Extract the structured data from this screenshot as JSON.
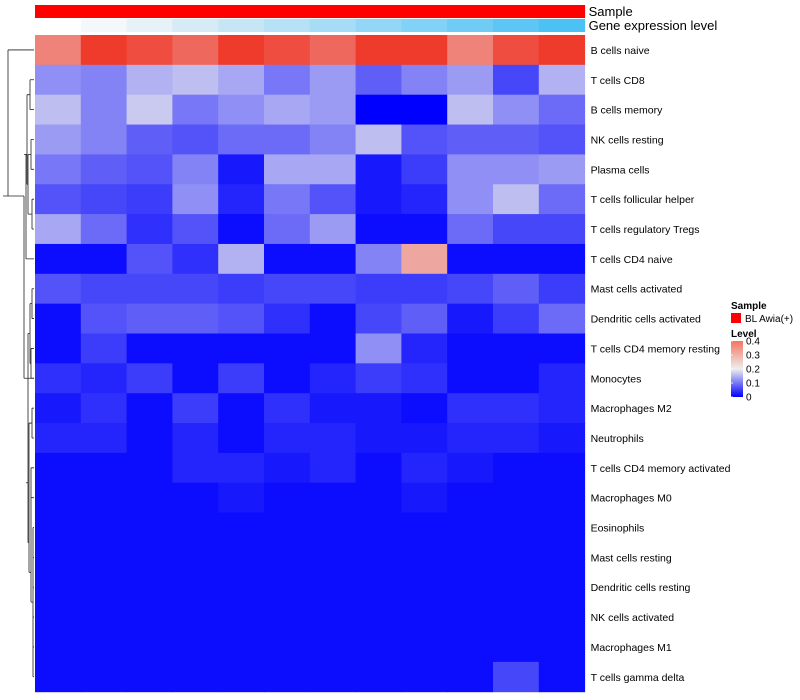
{
  "chart_data": {
    "type": "heatmap",
    "title": "",
    "annotation_tracks": [
      {
        "name": "Sample",
        "colors": [
          "#ff0000",
          "#ff0000",
          "#ff0000",
          "#ff0000",
          "#ff0000",
          "#ff0000",
          "#ff0000",
          "#ff0000",
          "#ff0000",
          "#ff0000",
          "#ff0000",
          "#ff0000"
        ]
      },
      {
        "name": "Gene expression level",
        "colors": [
          "#ffffff",
          "#f4f8fb",
          "#e6f1f8",
          "#d6ebf6",
          "#c6e6f6",
          "#b6e1f6",
          "#a6dcf6",
          "#94d6f6",
          "#82d1f6",
          "#70cbf5",
          "#5ec6f4",
          "#4cc2f4"
        ]
      }
    ],
    "columns": 12,
    "rows": [
      "B cells naive",
      "T cells CD8",
      "B cells memory",
      "NK cells resting",
      "Plasma cells",
      "T cells follicular helper",
      "T cells regulatory  Tregs",
      "T cells CD4 naive",
      "Mast cells activated",
      "Dendritic cells activated",
      "T cells CD4 memory resting",
      "Monocytes",
      "Macrophages M2",
      "Neutrophils",
      "T cells CD4 memory activated",
      "Macrophages M0",
      "Eosinophils",
      "Mast cells resting",
      "Dendritic cells resting",
      "NK cells activated",
      "Macrophages M1",
      "T cells gamma delta"
    ],
    "values": [
      [
        0.32,
        0.42,
        0.38,
        0.35,
        0.43,
        0.38,
        0.35,
        0.43,
        0.41,
        0.32,
        0.38,
        0.41
      ],
      [
        0.12,
        0.11,
        0.15,
        0.16,
        0.14,
        0.1,
        0.13,
        0.08,
        0.11,
        0.13,
        0.06,
        0.15
      ],
      [
        0.16,
        0.11,
        0.17,
        0.1,
        0.12,
        0.14,
        0.13,
        0.0,
        0.0,
        0.16,
        0.12,
        0.09
      ],
      [
        0.13,
        0.11,
        0.08,
        0.07,
        0.09,
        0.09,
        0.11,
        0.16,
        0.07,
        0.08,
        0.08,
        0.07
      ],
      [
        0.1,
        0.08,
        0.07,
        0.11,
        0.02,
        0.14,
        0.14,
        0.02,
        0.05,
        0.12,
        0.12,
        0.13
      ],
      [
        0.07,
        0.06,
        0.05,
        0.12,
        0.03,
        0.1,
        0.07,
        0.02,
        0.03,
        0.12,
        0.16,
        0.09
      ],
      [
        0.14,
        0.09,
        0.04,
        0.07,
        0.01,
        0.09,
        0.13,
        0.01,
        0.01,
        0.09,
        0.06,
        0.06
      ],
      [
        0.01,
        0.01,
        0.07,
        0.04,
        0.15,
        0.01,
        0.01,
        0.11,
        0.28,
        0.01,
        0.01,
        0.01
      ],
      [
        0.07,
        0.06,
        0.06,
        0.06,
        0.05,
        0.06,
        0.06,
        0.05,
        0.05,
        0.06,
        0.08,
        0.05
      ],
      [
        0.01,
        0.07,
        0.08,
        0.08,
        0.07,
        0.04,
        0.01,
        0.06,
        0.08,
        0.02,
        0.05,
        0.09
      ],
      [
        0.01,
        0.05,
        0.01,
        0.01,
        0.01,
        0.01,
        0.01,
        0.12,
        0.03,
        0.01,
        0.01,
        0.01
      ],
      [
        0.04,
        0.03,
        0.05,
        0.01,
        0.05,
        0.01,
        0.03,
        0.05,
        0.04,
        0.01,
        0.01,
        0.03
      ],
      [
        0.02,
        0.04,
        0.01,
        0.05,
        0.01,
        0.04,
        0.02,
        0.02,
        0.01,
        0.04,
        0.04,
        0.03
      ],
      [
        0.03,
        0.03,
        0.01,
        0.03,
        0.01,
        0.03,
        0.03,
        0.02,
        0.02,
        0.03,
        0.03,
        0.02
      ],
      [
        0.01,
        0.01,
        0.01,
        0.03,
        0.03,
        0.02,
        0.03,
        0.01,
        0.03,
        0.02,
        0.01,
        0.01
      ],
      [
        0.01,
        0.01,
        0.01,
        0.01,
        0.02,
        0.01,
        0.01,
        0.01,
        0.02,
        0.01,
        0.01,
        0.01
      ],
      [
        0.01,
        0.01,
        0.01,
        0.01,
        0.01,
        0.01,
        0.01,
        0.01,
        0.01,
        0.01,
        0.01,
        0.01
      ],
      [
        0.01,
        0.01,
        0.01,
        0.01,
        0.01,
        0.01,
        0.01,
        0.01,
        0.01,
        0.01,
        0.01,
        0.01
      ],
      [
        0.01,
        0.01,
        0.01,
        0.01,
        0.01,
        0.01,
        0.01,
        0.01,
        0.01,
        0.01,
        0.01,
        0.01
      ],
      [
        0.01,
        0.01,
        0.01,
        0.01,
        0.01,
        0.01,
        0.01,
        0.01,
        0.01,
        0.01,
        0.01,
        0.01
      ],
      [
        0.01,
        0.01,
        0.01,
        0.01,
        0.01,
        0.01,
        0.01,
        0.01,
        0.01,
        0.01,
        0.01,
        0.01
      ],
      [
        0.01,
        0.01,
        0.01,
        0.01,
        0.01,
        0.01,
        0.01,
        0.01,
        0.01,
        0.01,
        0.06,
        0.01
      ]
    ],
    "color_scale": {
      "min": 0,
      "max": 0.4,
      "low": "#0000ff",
      "mid": "#eeeeee",
      "high": "#ef3b2c",
      "midpoint": 0.2
    },
    "legend": {
      "sample_title": "Sample",
      "sample_entry": "BL Awia(+)",
      "sample_color": "#ff0000",
      "level_title": "Level",
      "level_ticks": [
        "0.4",
        "0.3",
        "0.2",
        "0.1",
        "0"
      ],
      "level_tick_values": [
        0.4,
        0.3,
        0.2,
        0.1,
        0
      ]
    },
    "row_dendrogram": true,
    "legend_position": "right"
  }
}
